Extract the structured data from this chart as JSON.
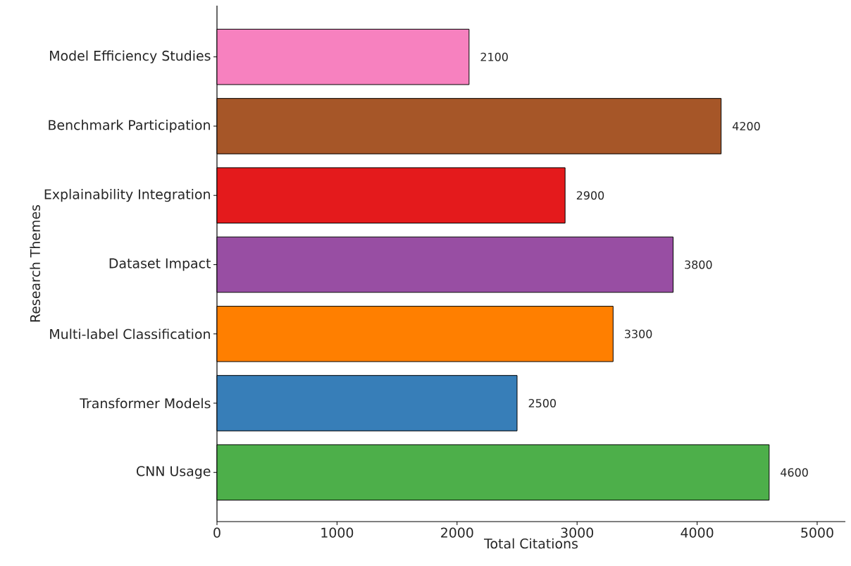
{
  "chart_data": {
    "type": "bar",
    "orientation": "horizontal",
    "xlabel": "Total Citations",
    "ylabel": "Research Themes",
    "categories": [
      "Model Efficiency Studies",
      "Benchmark Participation",
      "Explainability Integration",
      "Dataset Impact",
      "Multi-label Classification",
      "Transformer Models",
      "CNN Usage"
    ],
    "values": [
      2100,
      4200,
      2900,
      3800,
      3300,
      2500,
      4600
    ],
    "colors": [
      "#f781bf",
      "#a65628",
      "#e41a1c",
      "#984ea3",
      "#ff7f00",
      "#377eb8",
      "#4daf4a"
    ],
    "xlim": [
      0,
      5235
    ],
    "xticks": [
      0,
      1000,
      2000,
      3000,
      4000,
      5000
    ],
    "data_labels": true
  }
}
